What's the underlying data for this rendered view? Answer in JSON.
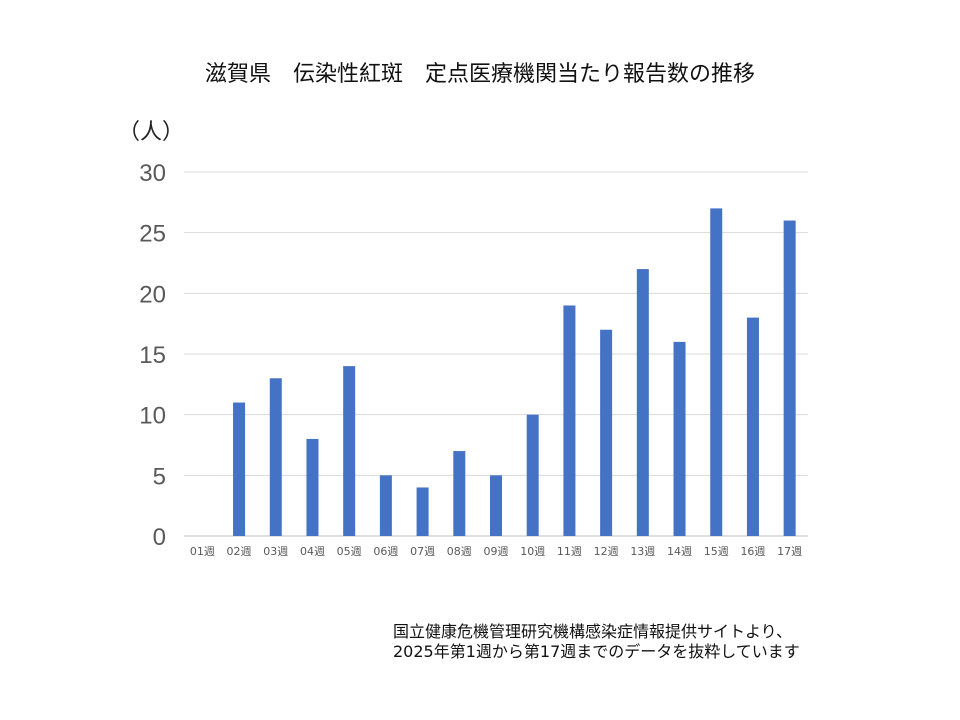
{
  "chart_data": {
    "type": "bar",
    "title": "滋賀県　伝染性紅斑　定点医療機関当たり報告数の推移",
    "ylabel": "（人）",
    "xlabel": "",
    "ylim": [
      0,
      30
    ],
    "yticks": [
      0,
      5,
      10,
      15,
      20,
      25,
      30
    ],
    "grid": true,
    "categories": [
      "01週",
      "02週",
      "03週",
      "04週",
      "05週",
      "06週",
      "07週",
      "08週",
      "09週",
      "10週",
      "11週",
      "12週",
      "13週",
      "14週",
      "15週",
      "16週",
      "17週"
    ],
    "values": [
      0,
      11,
      13,
      8,
      14,
      5,
      4,
      7,
      5,
      10,
      19,
      17,
      22,
      16,
      27,
      18,
      26
    ],
    "bar_color": "#4472C4"
  },
  "note": {
    "line1": "国立健康危機管理研究機構感染症情報提供サイトより、",
    "line2": "2025年第1週から第17週までのデータを抜粋しています"
  }
}
